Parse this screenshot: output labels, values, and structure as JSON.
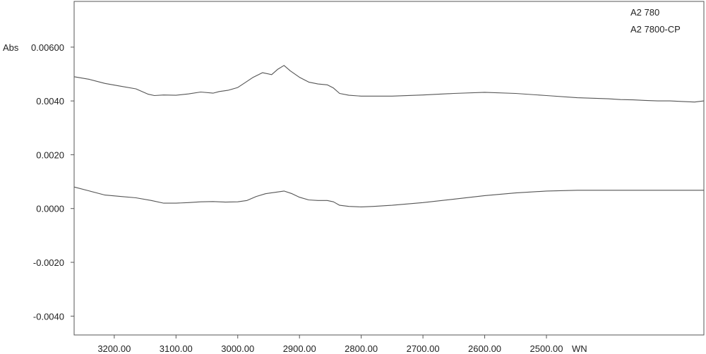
{
  "chart_data": {
    "type": "line",
    "title": "",
    "xlabel": "WN",
    "ylabel": "Abs",
    "xlim": [
      3265,
      2245
    ],
    "ylim": [
      -0.0047,
      0.0077
    ],
    "x_reversed": true,
    "grid": false,
    "legend": "top-right",
    "x_ticks": [
      3200,
      3100,
      3000,
      2900,
      2800,
      2700,
      2600,
      2500
    ],
    "x_tick_labels": [
      "3200.00",
      "3100.00",
      "3000.00",
      "2900.00",
      "2800.00",
      "2700.00",
      "2600.00",
      "2500.00"
    ],
    "y_ticks": [
      -0.004,
      -0.002,
      0.0,
      0.002,
      0.004,
      0.006
    ],
    "y_tick_labels": [
      "-0.0040",
      "-0.0020",
      "0.0000",
      "0.0020",
      "0.0040",
      "0.00600"
    ],
    "line_color": "#555555",
    "series": [
      {
        "name": "A2 780",
        "x": [
          3265,
          3240,
          3215,
          3190,
          3165,
          3145,
          3135,
          3120,
          3100,
          3080,
          3060,
          3040,
          3030,
          3015,
          3000,
          2990,
          2975,
          2960,
          2945,
          2935,
          2925,
          2915,
          2900,
          2885,
          2870,
          2855,
          2845,
          2835,
          2820,
          2800,
          2750,
          2700,
          2650,
          2600,
          2550,
          2500,
          2450,
          2400,
          2380,
          2360,
          2340,
          2320,
          2300,
          2280,
          2260,
          2245
        ],
        "y": [
          0.0049,
          0.0048,
          0.00465,
          0.00455,
          0.00445,
          0.00425,
          0.0042,
          0.00422,
          0.00421,
          0.00426,
          0.00433,
          0.00429,
          0.00435,
          0.0044,
          0.0045,
          0.00465,
          0.00488,
          0.00505,
          0.00498,
          0.00518,
          0.00532,
          0.00512,
          0.00488,
          0.0047,
          0.00463,
          0.0046,
          0.00448,
          0.00428,
          0.00421,
          0.00418,
          0.00418,
          0.00422,
          0.00428,
          0.00432,
          0.00428,
          0.0042,
          0.00412,
          0.00408,
          0.00405,
          0.00404,
          0.00402,
          0.004,
          0.004,
          0.00398,
          0.00396,
          0.004
        ]
      },
      {
        "name": "A2 7800-CP",
        "x": [
          3265,
          3240,
          3215,
          3190,
          3165,
          3140,
          3120,
          3100,
          3080,
          3060,
          3040,
          3020,
          3000,
          2985,
          2970,
          2955,
          2940,
          2925,
          2912,
          2900,
          2885,
          2870,
          2855,
          2845,
          2835,
          2820,
          2800,
          2780,
          2750,
          2700,
          2650,
          2600,
          2550,
          2500,
          2450,
          2400,
          2350,
          2300,
          2245
        ],
        "y": [
          0.0008,
          0.00065,
          0.0005,
          0.00045,
          0.0004,
          0.0003,
          0.0002,
          0.0002,
          0.00022,
          0.00025,
          0.00026,
          0.00024,
          0.00025,
          0.0003,
          0.00045,
          0.00055,
          0.0006,
          0.00065,
          0.00055,
          0.00042,
          0.00032,
          0.0003,
          0.0003,
          0.00025,
          0.00012,
          8e-05,
          6e-05,
          8e-05,
          0.00012,
          0.00022,
          0.00035,
          0.00048,
          0.00058,
          0.00065,
          0.00068,
          0.00068,
          0.00068,
          0.00068,
          0.00068
        ]
      }
    ]
  }
}
